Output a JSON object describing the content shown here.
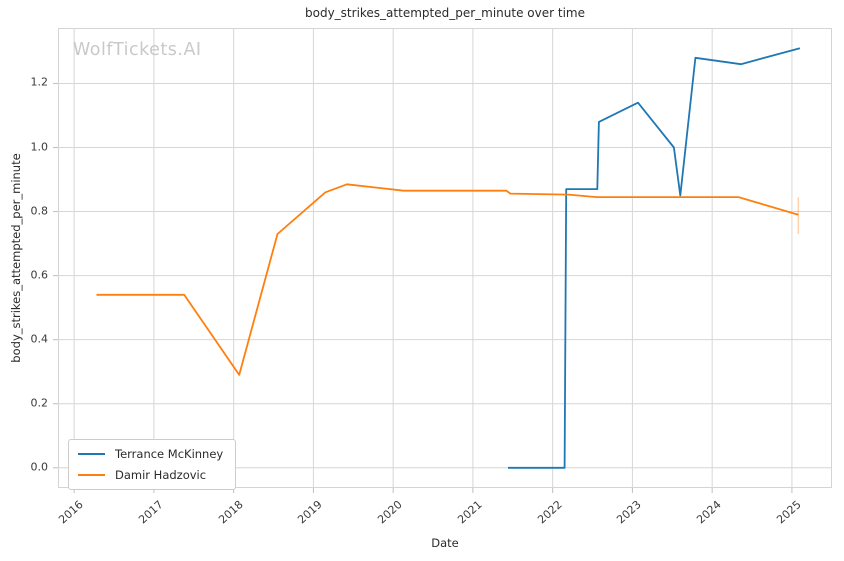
{
  "figure": {
    "watermark": "WolfTickets.AI"
  },
  "chart_data": {
    "type": "line",
    "title": "body_strikes_attempted_per_minute over time",
    "xlabel": "Date",
    "ylabel": "body_strikes_attempted_per_minute",
    "grid": true,
    "legend_position": "lower left",
    "xlim": [
      2015.81,
      2025.49
    ],
    "ylim": [
      -0.06,
      1.37
    ],
    "x_tick_values": [
      2016,
      2017,
      2018,
      2019,
      2020,
      2021,
      2022,
      2023,
      2024,
      2025
    ],
    "x_tick_labels": [
      "2016",
      "2017",
      "2018",
      "2019",
      "2020",
      "2021",
      "2022",
      "2023",
      "2024",
      "2025"
    ],
    "y_tick_values": [
      0.0,
      0.2,
      0.4,
      0.6,
      0.8,
      1.0,
      1.2
    ],
    "y_tick_labels": [
      "0.0",
      "0.2",
      "0.4",
      "0.6",
      "0.8",
      "1.0",
      "1.2"
    ],
    "colors": {
      "grid": "#d6d6d6",
      "spine": "#d4d4d4",
      "tick": "#c0c0c0",
      "text": "#3a3a3a",
      "watermark": "#c9c9c9"
    },
    "series": [
      {
        "name": "Terrance McKinney",
        "color": "#1f77b4",
        "x": [
          2021.44,
          2022.15,
          2022.17,
          2022.56,
          2022.58,
          2023.07,
          2023.52,
          2023.6,
          2023.79,
          2024.36,
          2025.1
        ],
        "y": [
          0.0,
          0.0,
          0.87,
          0.87,
          1.08,
          1.14,
          1.0,
          0.85,
          1.28,
          1.26,
          1.31
        ]
      },
      {
        "name": "Damir Hadzovic",
        "color": "#ff7f0e",
        "x": [
          2016.28,
          2017.38,
          2018.07,
          2018.55,
          2019.15,
          2019.42,
          2020.13,
          2021.42,
          2021.47,
          2022.2,
          2022.55,
          2024.33,
          2025.08
        ],
        "y": [
          0.54,
          0.54,
          0.29,
          0.73,
          0.86,
          0.885,
          0.865,
          0.865,
          0.856,
          0.853,
          0.845,
          0.845,
          0.79
        ],
        "error_bar": {
          "x": 2025.08,
          "low": 0.73,
          "high": 0.845
        }
      }
    ]
  }
}
